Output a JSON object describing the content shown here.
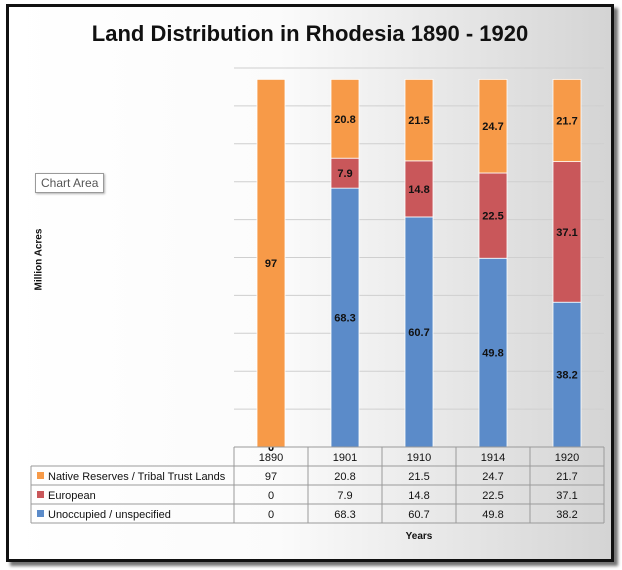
{
  "chart_data": {
    "type": "bar",
    "stacked": true,
    "title": "Land Distribution in Rhodesia 1890 - 1920",
    "xlabel": "Years",
    "ylabel": "Million Acres",
    "ylim": [
      0,
      100
    ],
    "grid": true,
    "legend": "data-table",
    "categories": [
      "1890",
      "1901",
      "1910",
      "1914",
      "1920"
    ],
    "series": [
      {
        "name": "Unoccupied / unspecified",
        "color": "#5b8bc9",
        "values": [
          0,
          68.3,
          60.7,
          49.8,
          38.2
        ]
      },
      {
        "name": "European",
        "color": "#c9575a",
        "values": [
          0,
          7.9,
          14.8,
          22.5,
          37.1
        ]
      },
      {
        "name": "Native Reserves / Tribal Trust Lands",
        "color": "#f79a48",
        "values": [
          97,
          20.8,
          21.5,
          24.7,
          21.7
        ]
      }
    ],
    "table_order": [
      2,
      1,
      0
    ]
  },
  "tooltip": "Chart Area"
}
